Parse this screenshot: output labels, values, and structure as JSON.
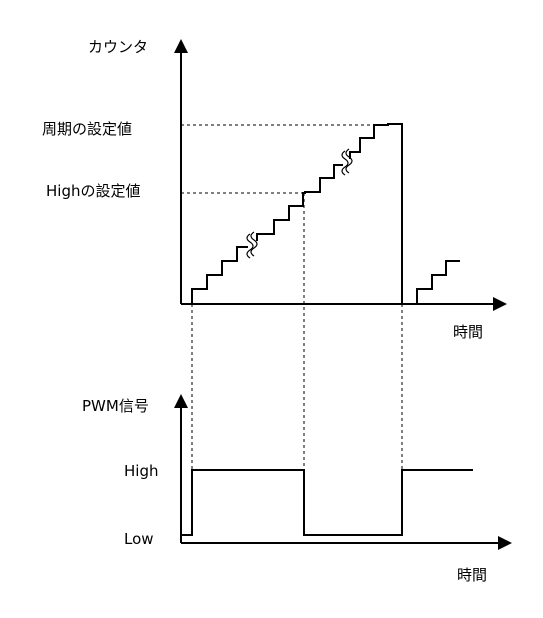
{
  "counter_chart": {
    "y_axis_label": "カウンタ",
    "x_axis_label": "時間",
    "period_setting_label": "周期の設定値",
    "high_setting_label": "Highの設定値"
  },
  "pwm_chart": {
    "y_axis_label": "PWM信号",
    "x_axis_label": "時間",
    "high_level_label": "High",
    "low_level_label": "Low"
  }
}
